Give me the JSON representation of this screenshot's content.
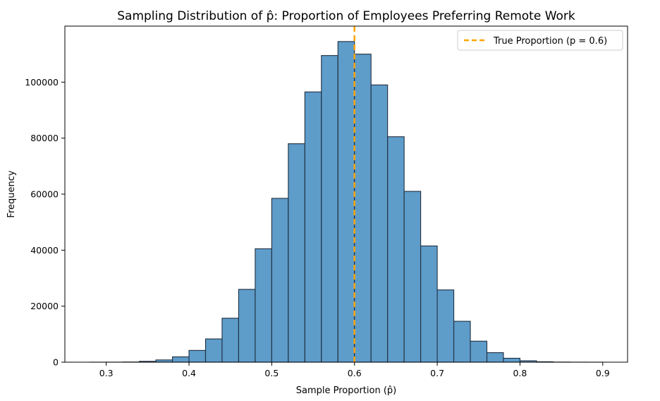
{
  "chart_data": {
    "type": "bar",
    "title": "Sampling Distribution of p̂: Proportion of Employees Preferring Remote Work",
    "xlabel": "Sample Proportion (p̂)",
    "ylabel": "Frequency",
    "xlim": [
      0.25,
      0.93
    ],
    "ylim": [
      0,
      120000
    ],
    "x_ticks": [
      0.3,
      0.4,
      0.5,
      0.6,
      0.7,
      0.8,
      0.9
    ],
    "x_tick_labels": [
      "0.3",
      "0.4",
      "0.5",
      "0.6",
      "0.7",
      "0.8",
      "0.9"
    ],
    "y_ticks": [
      0,
      20000,
      40000,
      60000,
      80000,
      100000
    ],
    "y_tick_labels": [
      "0",
      "20000",
      "40000",
      "60000",
      "80000",
      "100000"
    ],
    "grid": false,
    "bin_edges": [
      0.28,
      0.3,
      0.32,
      0.34,
      0.36,
      0.38,
      0.4,
      0.42,
      0.44,
      0.46,
      0.48,
      0.5,
      0.52,
      0.54,
      0.56,
      0.58,
      0.6,
      0.62,
      0.64,
      0.66,
      0.68,
      0.7,
      0.72,
      0.74,
      0.76,
      0.78,
      0.8,
      0.82,
      0.84,
      0.86,
      0.88,
      0.9
    ],
    "values": [
      2,
      10,
      60,
      300,
      800,
      1900,
      4200,
      8300,
      15700,
      26000,
      40500,
      58500,
      78000,
      96500,
      109500,
      114500,
      110000,
      99000,
      80500,
      61000,
      41500,
      25800,
      14600,
      7500,
      3400,
      1400,
      500,
      150,
      40,
      8,
      1
    ],
    "bar_color": "#5e9cca",
    "bar_edge_color": "#1f2f3f",
    "reference_line": {
      "x": 0.6,
      "color": "#ffa500",
      "style": "dashed"
    },
    "legend": {
      "placement": "top-right",
      "entries": [
        {
          "label": "True Proportion (p = 0.6)",
          "color": "#ffa500",
          "style": "dashed"
        }
      ]
    }
  }
}
